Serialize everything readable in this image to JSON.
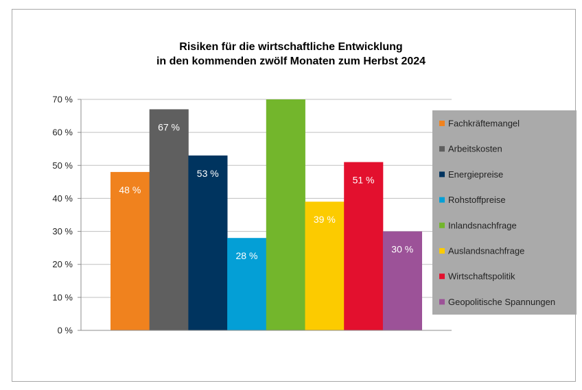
{
  "chart_data": {
    "type": "bar",
    "title": [
      "Risiken für die wirtschaftliche Entwicklung",
      "in den kommenden zwölf Monaten zum Herbst 2024"
    ],
    "categories": [
      "Fachkräftemangel",
      "Arbeitskosten",
      "Energiepreise",
      "Rohstoffpreise",
      "Inlandsnachfrage",
      "Auslandsnachfrage",
      "Wirtschaftspolitik",
      "Geopolitische Spannungen"
    ],
    "values": [
      48,
      67,
      53,
      28,
      70,
      39,
      51,
      30
    ],
    "data_labels": [
      "48 %",
      "67 %",
      "53 %",
      "28 %",
      "",
      "39 %",
      "51 %",
      "30 %"
    ],
    "colors": [
      "#f0821e",
      "#5f5f5f",
      "#00345f",
      "#049fd6",
      "#73b62c",
      "#fccb00",
      "#e3102e",
      "#9c5298"
    ],
    "ylim": [
      0,
      70
    ],
    "yticks": [
      "0 %",
      "10 %",
      "20 %",
      "30 %",
      "40 %",
      "50 %",
      "60 %",
      "70 %"
    ],
    "grid": true,
    "legend_position": "right",
    "legend_background": "#aaaaaa",
    "xlabel": "",
    "ylabel": ""
  }
}
